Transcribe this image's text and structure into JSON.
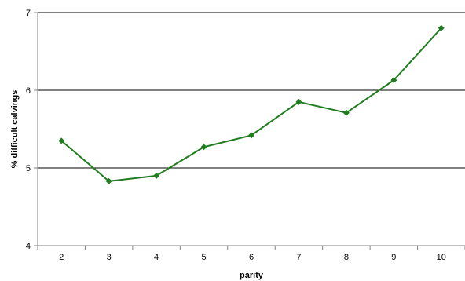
{
  "chart_data": {
    "type": "line",
    "title": "",
    "xlabel": "parity",
    "ylabel": "% difficult calvings",
    "categories": [
      "2",
      "3",
      "4",
      "5",
      "6",
      "7",
      "8",
      "9",
      "10"
    ],
    "series": [
      {
        "values": [
          5.35,
          4.83,
          4.9,
          5.27,
          5.42,
          5.85,
          5.71,
          6.13,
          6.8
        ]
      }
    ],
    "ylim": [
      4,
      7
    ],
    "yticks": [
      "4",
      "5",
      "6",
      "7"
    ],
    "grid": true,
    "legend": "none",
    "colors": {
      "line": "#1f7d1f",
      "marker": "#1f7d1f",
      "grid": "#000000",
      "axis": "#808080"
    }
  }
}
